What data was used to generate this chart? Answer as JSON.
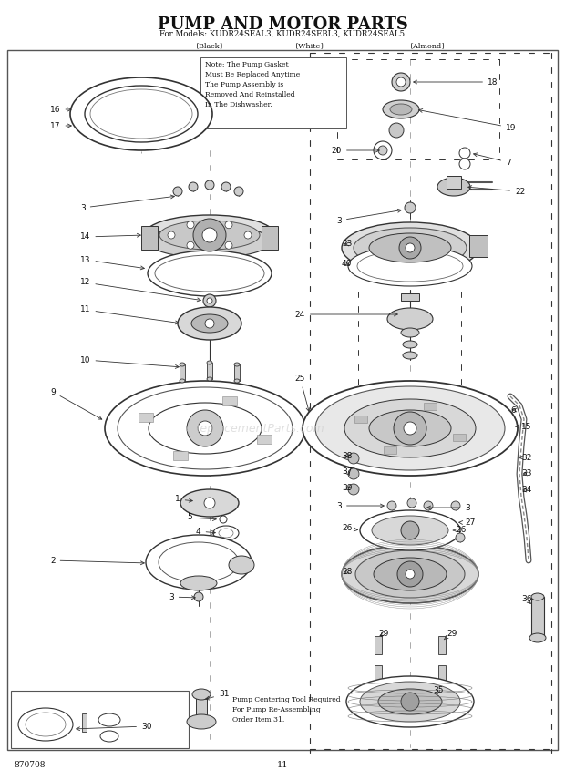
{
  "title_line1": "PUMP AND MOTOR PARTS",
  "title_line2": "For Models: KUDR24SEAL3, KUDR24SEBL3, KUDR24SEAL5",
  "subtitle_black": "{Black}",
  "subtitle_white": "{White}",
  "subtitle_almond": "{Almond}",
  "doc_number": "870708",
  "page_number": "11",
  "bg_color": "#ffffff",
  "note_text": "Note: The Pump Gasket\nMust Be Replaced Anytime\nThe Pump Assembly is\nRemoved And Reinstalled\nIn The Dishwasher.",
  "pump_note_text": "Pump Centering Tool Required\nFor Pump Re-Assembling\nOrder Item 31.",
  "font_color": "#111111",
  "line_color": "#333333",
  "light_gray": "#cccccc",
  "mid_gray": "#888888",
  "dark_gray": "#444444"
}
